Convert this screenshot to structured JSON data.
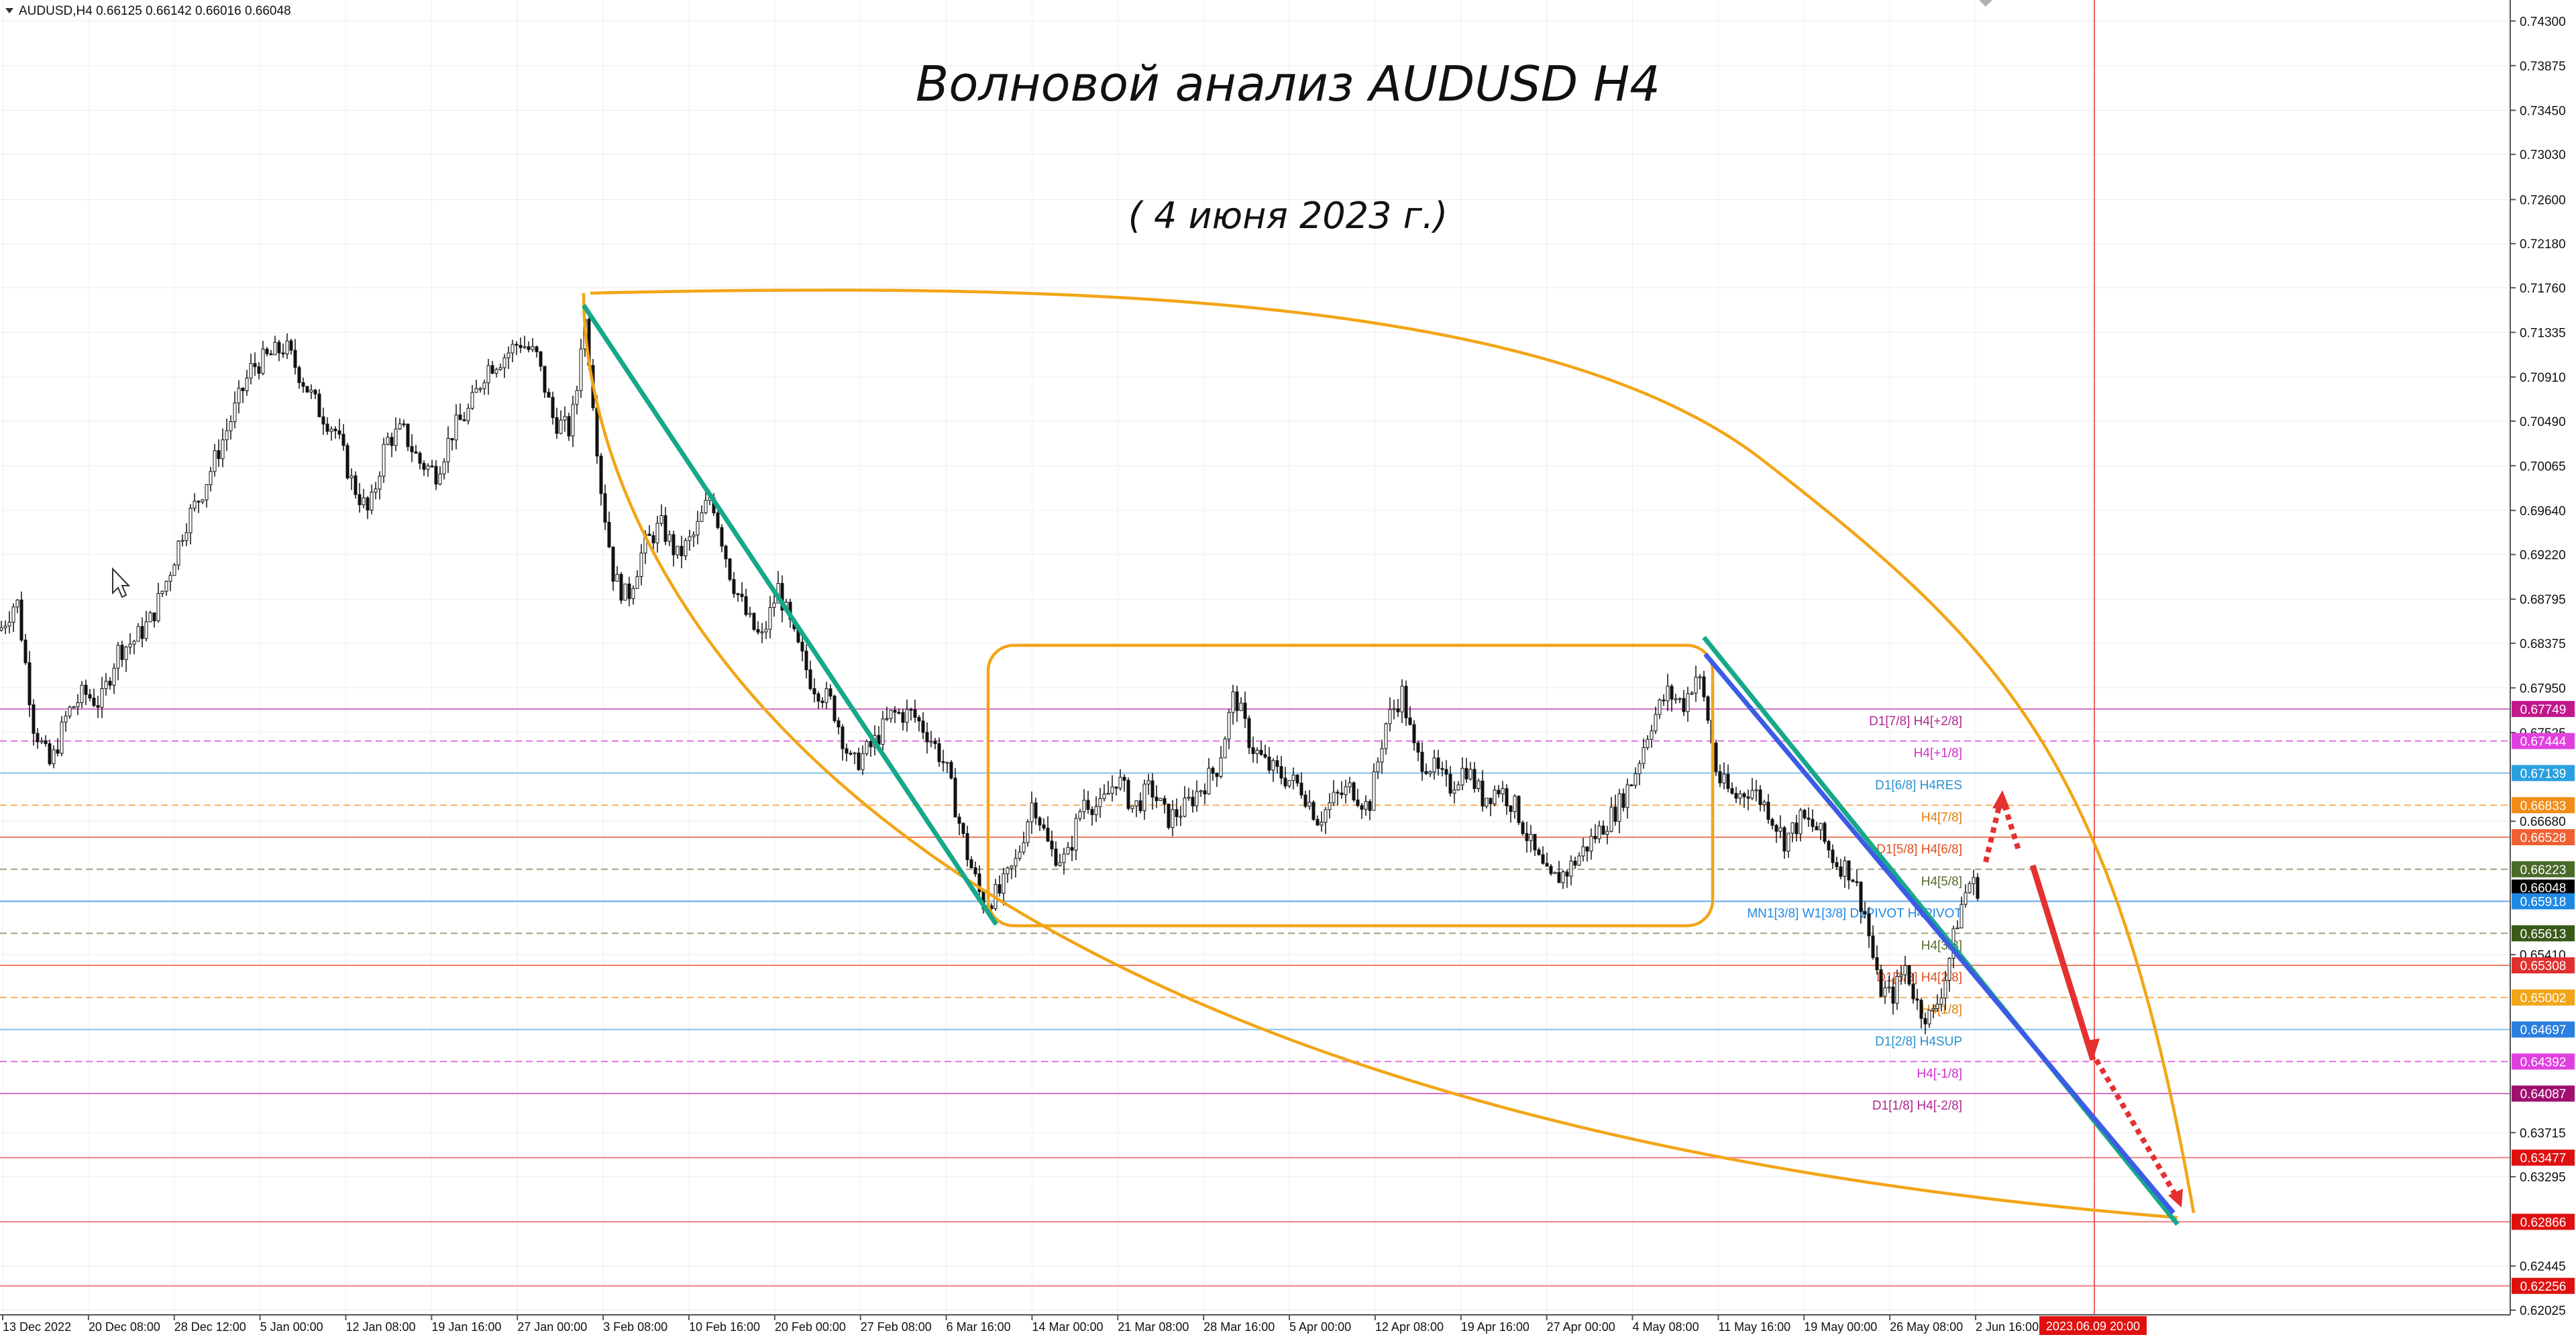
{
  "header": {
    "symbol_info": "AUDUSD,H4  0.66125 0.66142 0.66016 0.66048",
    "title": "Волновой анализ AUDUSD H4",
    "date_note": "( 4 июня 2023 г.)"
  },
  "colors": {
    "background": "#ffffff",
    "grid": "#e3e3ec",
    "orange": "#f2a516",
    "green": "#17a88a",
    "blue": "#3c5be6",
    "red": "#e53030",
    "candle": "#111111"
  },
  "chart_data": {
    "type": "candlestick",
    "ylim": [
      0.6198,
      0.745
    ],
    "ytick_labels": [
      "0.74300",
      "0.73875",
      "0.73450",
      "0.73030",
      "0.72600",
      "0.72180",
      "0.71760",
      "0.71335",
      "0.70910",
      "0.70490",
      "0.70065",
      "0.69640",
      "0.69220",
      "0.68795",
      "0.68375",
      "0.67950",
      "0.67525",
      "0.66680",
      "0.65410",
      "0.63715",
      "0.63295",
      "0.62445",
      "0.62025"
    ],
    "xtick_labels": [
      "13 Dec 2022",
      "20 Dec 08:00",
      "28 Dec 12:00",
      "5 Jan 00:00",
      "12 Jan 08:00",
      "19 Jan 16:00",
      "27 Jan 00:00",
      "3 Feb 08:00",
      "10 Feb 16:00",
      "20 Feb 00:00",
      "27 Feb 08:00",
      "6 Mar 16:00",
      "14 Mar 00:00",
      "21 Mar 08:00",
      "28 Mar 16:00",
      "5 Apr 00:00",
      "12 Apr 08:00",
      "19 Apr 16:00",
      "27 Apr 00:00",
      "4 May 08:00",
      "11 May 16:00",
      "19 May 00:00",
      "26 May 08:00",
      "2 Jun 16:00"
    ],
    "time_marker_label": "2023.06.09 20:00",
    "price_path": [
      [
        0,
        0.685
      ],
      [
        25,
        0.688
      ],
      [
        50,
        0.676
      ],
      [
        75,
        0.672
      ],
      [
        100,
        0.677
      ],
      [
        125,
        0.679
      ],
      [
        150,
        0.678
      ],
      [
        175,
        0.683
      ],
      [
        200,
        0.684
      ],
      [
        225,
        0.686
      ],
      [
        250,
        0.69
      ],
      [
        275,
        0.695
      ],
      [
        300,
        0.698
      ],
      [
        325,
        0.702
      ],
      [
        350,
        0.706
      ],
      [
        375,
        0.71
      ],
      [
        400,
        0.711
      ],
      [
        425,
        0.712
      ],
      [
        450,
        0.709
      ],
      [
        475,
        0.706
      ],
      [
        500,
        0.704
      ],
      [
        525,
        0.699
      ],
      [
        550,
        0.696
      ],
      [
        575,
        0.703
      ],
      [
        600,
        0.704
      ],
      [
        625,
        0.701
      ],
      [
        650,
        0.7
      ],
      [
        675,
        0.704
      ],
      [
        700,
        0.706
      ],
      [
        725,
        0.71
      ],
      [
        750,
        0.711
      ],
      [
        775,
        0.7125
      ],
      [
        800,
        0.711
      ],
      [
        825,
        0.705
      ],
      [
        850,
        0.704
      ],
      [
        860,
        0.708
      ],
      [
        870,
        0.7155
      ],
      [
        880,
        0.71
      ],
      [
        895,
        0.699
      ],
      [
        915,
        0.69
      ],
      [
        935,
        0.688
      ],
      [
        960,
        0.693
      ],
      [
        985,
        0.695
      ],
      [
        1010,
        0.692
      ],
      [
        1035,
        0.694
      ],
      [
        1060,
        0.698
      ],
      [
        1075,
        0.694
      ],
      [
        1090,
        0.69
      ],
      [
        1115,
        0.686
      ],
      [
        1135,
        0.684
      ],
      [
        1160,
        0.689
      ],
      [
        1185,
        0.684
      ],
      [
        1210,
        0.68
      ],
      [
        1240,
        0.678
      ],
      [
        1270,
        0.672
      ],
      [
        1300,
        0.674
      ],
      [
        1330,
        0.677
      ],
      [
        1360,
        0.677
      ],
      [
        1385,
        0.675
      ],
      [
        1410,
        0.672
      ],
      [
        1440,
        0.664
      ],
      [
        1465,
        0.659
      ],
      [
        1490,
        0.66
      ],
      [
        1515,
        0.663
      ],
      [
        1540,
        0.669
      ],
      [
        1565,
        0.664
      ],
      [
        1590,
        0.663
      ],
      [
        1615,
        0.669
      ],
      [
        1640,
        0.668
      ],
      [
        1665,
        0.671
      ],
      [
        1690,
        0.668
      ],
      [
        1715,
        0.67
      ],
      [
        1740,
        0.667
      ],
      [
        1765,
        0.668
      ],
      [
        1790,
        0.67
      ],
      [
        1815,
        0.672
      ],
      [
        1840,
        0.679
      ],
      [
        1865,
        0.674
      ],
      [
        1890,
        0.672
      ],
      [
        1915,
        0.671
      ],
      [
        1940,
        0.67
      ],
      [
        1965,
        0.667
      ],
      [
        1990,
        0.669
      ],
      [
        2015,
        0.67
      ],
      [
        2040,
        0.668
      ],
      [
        2065,
        0.676
      ],
      [
        2090,
        0.679
      ],
      [
        2110,
        0.673
      ],
      [
        2135,
        0.672
      ],
      [
        2160,
        0.67
      ],
      [
        2185,
        0.672
      ],
      [
        2210,
        0.669
      ],
      [
        2235,
        0.67
      ],
      [
        2260,
        0.668
      ],
      [
        2285,
        0.664
      ],
      [
        2310,
        0.661
      ],
      [
        2335,
        0.662
      ],
      [
        2360,
        0.664
      ],
      [
        2385,
        0.666
      ],
      [
        2410,
        0.668
      ],
      [
        2435,
        0.671
      ],
      [
        2460,
        0.676
      ],
      [
        2485,
        0.679
      ],
      [
        2510,
        0.678
      ],
      [
        2530,
        0.681
      ],
      [
        2545,
        0.677
      ],
      [
        2560,
        0.671
      ],
      [
        2585,
        0.669
      ],
      [
        2610,
        0.67
      ],
      [
        2635,
        0.668
      ],
      [
        2660,
        0.665
      ],
      [
        2685,
        0.667
      ],
      [
        2710,
        0.666
      ],
      [
        2735,
        0.663
      ],
      [
        2760,
        0.662
      ],
      [
        2780,
        0.658
      ],
      [
        2800,
        0.651
      ],
      [
        2820,
        0.65
      ],
      [
        2840,
        0.653
      ],
      [
        2860,
        0.649
      ],
      [
        2880,
        0.648
      ],
      [
        2900,
        0.652
      ],
      [
        2920,
        0.658
      ],
      [
        2935,
        0.661
      ],
      [
        2948,
        0.6605
      ]
    ],
    "price_labels": [
      {
        "text": "0.67749",
        "price": 0.67749,
        "bg": "#c2188c"
      },
      {
        "text": "0.67444",
        "price": 0.67444,
        "bg": "#e040e0"
      },
      {
        "text": "0.67139",
        "price": 0.67139,
        "bg": "#2aa0e0"
      },
      {
        "text": "0.66833",
        "price": 0.66833,
        "bg": "#f28c16"
      },
      {
        "text": "0.66528",
        "price": 0.66528,
        "bg": "#f06030"
      },
      {
        "text": "0.66223",
        "price": 0.66223,
        "bg": "#4a6a2a"
      },
      {
        "text": "0.66048",
        "price": 0.66048,
        "bg": "#000000"
      },
      {
        "text": "0.65918",
        "price": 0.65918,
        "bg": "#1e88e5"
      },
      {
        "text": "0.65613",
        "price": 0.65613,
        "bg": "#3a5a1a"
      },
      {
        "text": "0.65308",
        "price": 0.65308,
        "bg": "#e03030"
      },
      {
        "text": "0.65002",
        "price": 0.65002,
        "bg": "#f2a516"
      },
      {
        "text": "0.64697",
        "price": 0.64697,
        "bg": "#2a80e0"
      },
      {
        "text": "0.64392",
        "price": 0.64392,
        "bg": "#e040e0"
      },
      {
        "text": "0.64087",
        "price": 0.64087,
        "bg": "#a01070"
      },
      {
        "text": "0.63477",
        "price": 0.63477,
        "bg": "#e01010"
      },
      {
        "text": "0.62866",
        "price": 0.62866,
        "bg": "#e01010"
      },
      {
        "text": "0.62256",
        "price": 0.62256,
        "bg": "#e01010"
      }
    ],
    "levels": [
      {
        "price": 0.67749,
        "color": "#d070c0",
        "dash": false,
        "label": "D1[7/8] H4[+2/8]",
        "label_color": "#b02890"
      },
      {
        "price": 0.67444,
        "color": "#e070e0",
        "dash": true,
        "label": "H4[+1/8]",
        "label_color": "#d030d0"
      },
      {
        "price": 0.67139,
        "color": "#80c0e8",
        "dash": false,
        "label": "D1[6/8] H4RES",
        "label_color": "#2a90d0"
      },
      {
        "price": 0.66833,
        "color": "#f5b060",
        "dash": true,
        "label": "H4[7/8]",
        "label_color": "#e08010"
      },
      {
        "price": 0.66528,
        "color": "#f08060",
        "dash": false,
        "label": "D1[5/8] H4[6/8]",
        "label_color": "#e05020"
      },
      {
        "price": 0.66223,
        "color": "#a0a080",
        "dash": true,
        "label": "H4[5/8]",
        "label_color": "#556b2f"
      },
      {
        "price": 0.65918,
        "color": "#60a8e8",
        "dash": false,
        "label": "MN1[3/8] W1[3/8] D1PIVOT H4PIVOT",
        "label_color": "#1e88e5"
      },
      {
        "price": 0.65613,
        "color": "#a0a080",
        "dash": true,
        "label": "H4[3/8]",
        "label_color": "#556b2f"
      },
      {
        "price": 0.65308,
        "color": "#f08060",
        "dash": false,
        "label": "D1[3/8] H4[2/8]",
        "label_color": "#e05020"
      },
      {
        "price": 0.65002,
        "color": "#f5b060",
        "dash": true,
        "label": "H4[1/8]",
        "label_color": "#e08010"
      },
      {
        "price": 0.64697,
        "color": "#80c0e8",
        "dash": false,
        "label": "D1[2/8] H4SUP",
        "label_color": "#2a90d0"
      },
      {
        "price": 0.64392,
        "color": "#e070e0",
        "dash": true,
        "label": "H4[-1/8]",
        "label_color": "#d030d0"
      },
      {
        "price": 0.64087,
        "color": "#d070c0",
        "dash": false,
        "label": "D1[1/8] H4[-2/8]",
        "label_color": "#b02890"
      },
      {
        "price": 0.63477,
        "color": "#f08080",
        "dash": false,
        "label": "",
        "label_color": "#e01010"
      },
      {
        "price": 0.62866,
        "color": "#f08080",
        "dash": false,
        "label": "",
        "label_color": "#e01010"
      },
      {
        "price": 0.62256,
        "color": "#f08080",
        "dash": false,
        "label": "",
        "label_color": "#e01010"
      }
    ]
  }
}
